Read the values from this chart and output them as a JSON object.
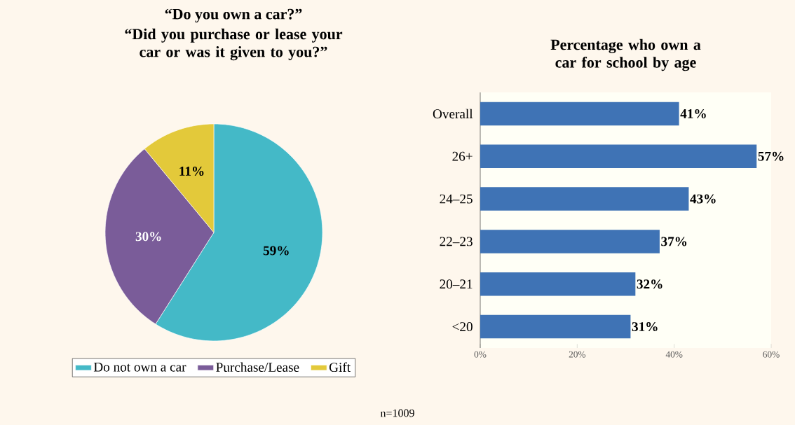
{
  "chart_data": [
    {
      "type": "pie",
      "title": "“Do you own a car?”",
      "subtitle": "“Did you purchase or lease your car or was it given to you?”",
      "categories": [
        "Do not own a car",
        "Purchase/Lease",
        "Gift"
      ],
      "values": [
        59,
        30,
        11
      ],
      "colors": [
        "#44b9c7",
        "#7a5c99",
        "#e3c93a"
      ],
      "value_labels": [
        "59%",
        "30%",
        "11%"
      ],
      "legend": "bottom",
      "annotations": [
        "n=1009"
      ]
    },
    {
      "type": "bar",
      "orientation": "horizontal",
      "title": "Percentage who own a car for school by age",
      "categories": [
        "Overall",
        "26+",
        "24–25",
        "22–23",
        "20–21",
        "<20"
      ],
      "values": [
        41,
        57,
        43,
        37,
        32,
        31
      ],
      "color": "#3f73b5",
      "value_labels": [
        "41%",
        "57%",
        "43%",
        "37%",
        "32%",
        "31%"
      ],
      "xlim": [
        0,
        60
      ],
      "xticks": [
        {
          "value": 0,
          "label": "0%"
        },
        {
          "value": 20,
          "label": "20%"
        },
        {
          "value": 40,
          "label": "40%"
        },
        {
          "value": 60,
          "label": "60%"
        }
      ]
    }
  ]
}
